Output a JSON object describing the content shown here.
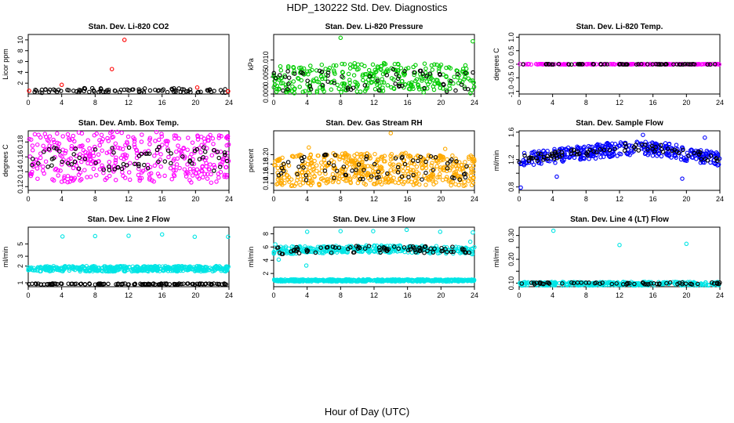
{
  "page": {
    "title": "HDP_130222  Std. Dev. Diagnostics",
    "x_axis_title": "Hour of Day (UTC)"
  },
  "chart_data": [
    {
      "type": "scatter",
      "title": "Stan. Dev. Li-820 CO2",
      "ylabel": "Licor ppm",
      "xlim": [
        0,
        24
      ],
      "xticks": [
        0,
        4,
        8,
        12,
        16,
        20,
        24
      ],
      "ylim": [
        0,
        11
      ],
      "yticks": [
        2,
        4,
        6,
        8,
        10
      ],
      "series": [
        {
          "name": "bulk",
          "color": "#000000",
          "band": {
            "n": 90,
            "lo": 0.2,
            "hi": 1.0,
            "a": 0.1,
            "b": 0,
            "seed": 11
          }
        },
        {
          "name": "outliers",
          "color": "#ff0000",
          "x": [
            0.1,
            4.0,
            10.0,
            11.5,
            20.2,
            23.9
          ],
          "y": [
            0.6,
            1.7,
            4.6,
            10.0,
            1.2,
            0.5
          ]
        }
      ]
    },
    {
      "type": "scatter",
      "title": "Stan. Dev. Li-820 Pressure",
      "ylabel": "kPa",
      "xlim": [
        0,
        24
      ],
      "xticks": [
        0,
        4,
        8,
        12,
        16,
        20,
        24
      ],
      "ylim": [
        0,
        0.0175
      ],
      "yticks": [
        0.0,
        0.005,
        0.01
      ],
      "ytick_labels": [
        "0.000",
        "0.005",
        "0.010"
      ],
      "series": [
        {
          "name": "bulk",
          "color": "#00cc00",
          "band": {
            "n": 320,
            "lo": 0.0,
            "hi": 0.0085,
            "a": 0.0006,
            "b": 0,
            "seed": 21
          }
        },
        {
          "name": "hourly",
          "color": "#000000",
          "band": {
            "n": 60,
            "lo": 0.0005,
            "hi": 0.007,
            "a": 0.0004,
            "b": 0,
            "seed": 22
          }
        },
        {
          "name": "outliers",
          "color": "#00cc00",
          "x": [
            8.0,
            23.8
          ],
          "y": [
            0.0165,
            0.0155
          ]
        }
      ]
    },
    {
      "type": "scatter",
      "title": "Stan. Dev. Li-820 Temp.",
      "ylabel": "degrees C",
      "xlim": [
        0,
        24
      ],
      "xticks": [
        0,
        4,
        8,
        12,
        16,
        20,
        24
      ],
      "ylim": [
        -1.1,
        1.1
      ],
      "yticks": [
        -1.0,
        -0.5,
        0.0,
        0.5,
        1.0
      ],
      "ytick_labels": [
        "-1.0",
        "-0.5",
        "0.0",
        "0.5",
        "1.0"
      ],
      "series": [
        {
          "name": "bulk",
          "color": "#ff00ff",
          "band": {
            "n": 200,
            "lo": -0.01,
            "hi": 0.01,
            "a": 0,
            "b": 0,
            "seed": 31
          }
        },
        {
          "name": "hourly",
          "color": "#000000",
          "band": {
            "n": 60,
            "lo": -0.01,
            "hi": 0.01,
            "a": 0,
            "b": 0,
            "seed": 32
          }
        }
      ]
    },
    {
      "type": "scatter",
      "title": "Stan. Dev. Amb. Box Temp.",
      "ylabel": "degrees C",
      "xlim": [
        0,
        24
      ],
      "xticks": [
        0,
        4,
        8,
        12,
        16,
        20,
        24
      ],
      "ylim": [
        0.115,
        0.195
      ],
      "yticks": [
        0.12,
        0.14,
        0.16,
        0.18
      ],
      "ytick_labels": [
        "0.12",
        "0.14",
        "0.16",
        "0.18"
      ],
      "series": [
        {
          "name": "bulk",
          "color": "#ff00ff",
          "band": {
            "n": 380,
            "lo": 0.123,
            "hi": 0.19,
            "a": 0.004,
            "b": 0,
            "seed": 41
          }
        },
        {
          "name": "hourly",
          "color": "#000000",
          "band": {
            "n": 70,
            "lo": 0.14,
            "hi": 0.172,
            "a": 0.002,
            "b": 0,
            "seed": 42
          }
        }
      ]
    },
    {
      "type": "scatter",
      "title": "Stan. Dev. Gas Stream RH",
      "ylabel": "percent",
      "xlim": [
        0,
        24
      ],
      "xticks": [
        0,
        4,
        8,
        12,
        16,
        20,
        24
      ],
      "ylim": [
        0.125,
        0.25
      ],
      "yticks": [
        0.14,
        0.16,
        0.18,
        0.2
      ],
      "ytick_labels": [
        "0.14",
        "0.16",
        "0.18",
        "0.20"
      ],
      "series": [
        {
          "name": "bulk",
          "color": "#ffaa00",
          "band": {
            "n": 520,
            "lo": 0.133,
            "hi": 0.2,
            "a": 0.004,
            "b": 0,
            "seed": 51
          }
        },
        {
          "name": "hourly",
          "color": "#000000",
          "band": {
            "n": 70,
            "lo": 0.145,
            "hi": 0.198,
            "a": 0.003,
            "b": 0,
            "seed": 52
          }
        },
        {
          "name": "outliers",
          "color": "#ffaa00",
          "x": [
            14.0,
            4.2,
            20.5
          ],
          "y": [
            0.245,
            0.215,
            0.212
          ]
        }
      ]
    },
    {
      "type": "scatter",
      "title": "Stan. Dev. Sample Flow",
      "ylabel": "ml/min",
      "xlim": [
        0,
        24
      ],
      "xticks": [
        0,
        4,
        8,
        12,
        16,
        20,
        24
      ],
      "ylim": [
        0.75,
        1.62
      ],
      "yticks": [
        0.8,
        1.0,
        1.2,
        1.4,
        1.6
      ],
      "ytick_labels": [
        "0.8",
        "",
        "1.2",
        "",
        "1.6"
      ],
      "series": [
        {
          "name": "bulk",
          "color": "#0000ff",
          "band": {
            "n": 380,
            "lo": 1.09,
            "hi": 1.3,
            "a": 0.1,
            "b": 15,
            "seed": 61
          }
        },
        {
          "name": "hourly",
          "color": "#000000",
          "band": {
            "n": 80,
            "lo": 1.15,
            "hi": 1.26,
            "a": 0.1,
            "b": 15,
            "seed": 62
          }
        },
        {
          "name": "outliers",
          "color": "#0000ff",
          "x": [
            0.2,
            4.5,
            14.8,
            19.5,
            22.2
          ],
          "y": [
            0.79,
            0.95,
            1.56,
            0.92,
            1.52
          ]
        }
      ]
    },
    {
      "type": "scatter",
      "title": "Stan. Dev. Line 2 Flow",
      "ylabel": "ml/min",
      "y_scale": "log",
      "xlim": [
        0,
        24
      ],
      "xticks": [
        0,
        4,
        8,
        12,
        16,
        20,
        24
      ],
      "ylim": [
        0.85,
        10.0
      ],
      "yticks": [
        1,
        2,
        3,
        5
      ],
      "ytick_labels": [
        "1",
        "2",
        "3",
        "5"
      ],
      "series": [
        {
          "name": "bulk",
          "color": "#00e5e5",
          "band": {
            "n": 440,
            "lo": 1.6,
            "hi": 2.0,
            "a": 0,
            "b": 0,
            "seed": 71
          }
        },
        {
          "name": "hourly",
          "color": "#000000",
          "band": {
            "n": 120,
            "lo": 0.93,
            "hi": 0.97,
            "a": 0,
            "b": 0,
            "seed": 72
          }
        },
        {
          "name": "outliers",
          "color": "#00e5e5",
          "x": [
            4.1,
            8.0,
            12.0,
            16.0,
            19.9,
            23.9
          ],
          "y": [
            6.8,
            6.9,
            7.0,
            7.4,
            6.7,
            6.7
          ]
        }
      ]
    },
    {
      "type": "scatter",
      "title": "Stan. Dev. Line 3 Flow",
      "ylabel": "ml/min",
      "xlim": [
        0,
        24
      ],
      "xticks": [
        0,
        4,
        8,
        12,
        16,
        20,
        24
      ],
      "ylim": [
        0,
        9
      ],
      "yticks": [
        2,
        4,
        6,
        8
      ],
      "series": [
        {
          "name": "bulk-high",
          "color": "#00e5e5",
          "band": {
            "n": 360,
            "lo": 4.9,
            "hi": 6.0,
            "a": 0.25,
            "b": 0,
            "seed": 81
          }
        },
        {
          "name": "bulk-low",
          "color": "#00e5e5",
          "band": {
            "n": 500,
            "lo": 0.8,
            "hi": 1.1,
            "a": 0,
            "b": 0,
            "seed": 82
          }
        },
        {
          "name": "hourly",
          "color": "#000000",
          "band": {
            "n": 80,
            "lo": 4.9,
            "hi": 6.0,
            "a": 0.25,
            "b": 0,
            "seed": 83
          }
        },
        {
          "name": "outliers",
          "color": "#00e5e5",
          "x": [
            0.2,
            0.6,
            3.9,
            4.0,
            8.0,
            11.9,
            15.9,
            19.9,
            23.5,
            23.8
          ],
          "y": [
            6.4,
            4.1,
            3.2,
            8.3,
            8.4,
            8.4,
            8.6,
            8.3,
            6.8,
            8.2
          ]
        }
      ]
    },
    {
      "type": "scatter",
      "title": "Stan. Dev. Line 4 (LT) Flow",
      "ylabel": "ml/min",
      "xlim": [
        0,
        24
      ],
      "xticks": [
        0,
        4,
        8,
        12,
        16,
        20,
        24
      ],
      "ylim": [
        0.085,
        0.335
      ],
      "yticks": [
        0.1,
        0.15,
        0.2,
        0.25,
        0.3
      ],
      "ytick_labels": [
        "0.10",
        "",
        "0.20",
        "",
        "0.30"
      ],
      "series": [
        {
          "name": "bulk",
          "color": "#00e5e5",
          "band": {
            "n": 300,
            "lo": 0.09,
            "hi": 0.105,
            "a": 0,
            "b": 0,
            "seed": 91
          }
        },
        {
          "name": "hourly",
          "color": "#000000",
          "band": {
            "n": 60,
            "lo": 0.095,
            "hi": 0.103,
            "a": 0,
            "b": 0,
            "seed": 92
          }
        },
        {
          "name": "outliers",
          "color": "#00e5e5",
          "x": [
            4.1,
            12.0,
            20.0
          ],
          "y": [
            0.32,
            0.26,
            0.265
          ]
        }
      ]
    }
  ]
}
